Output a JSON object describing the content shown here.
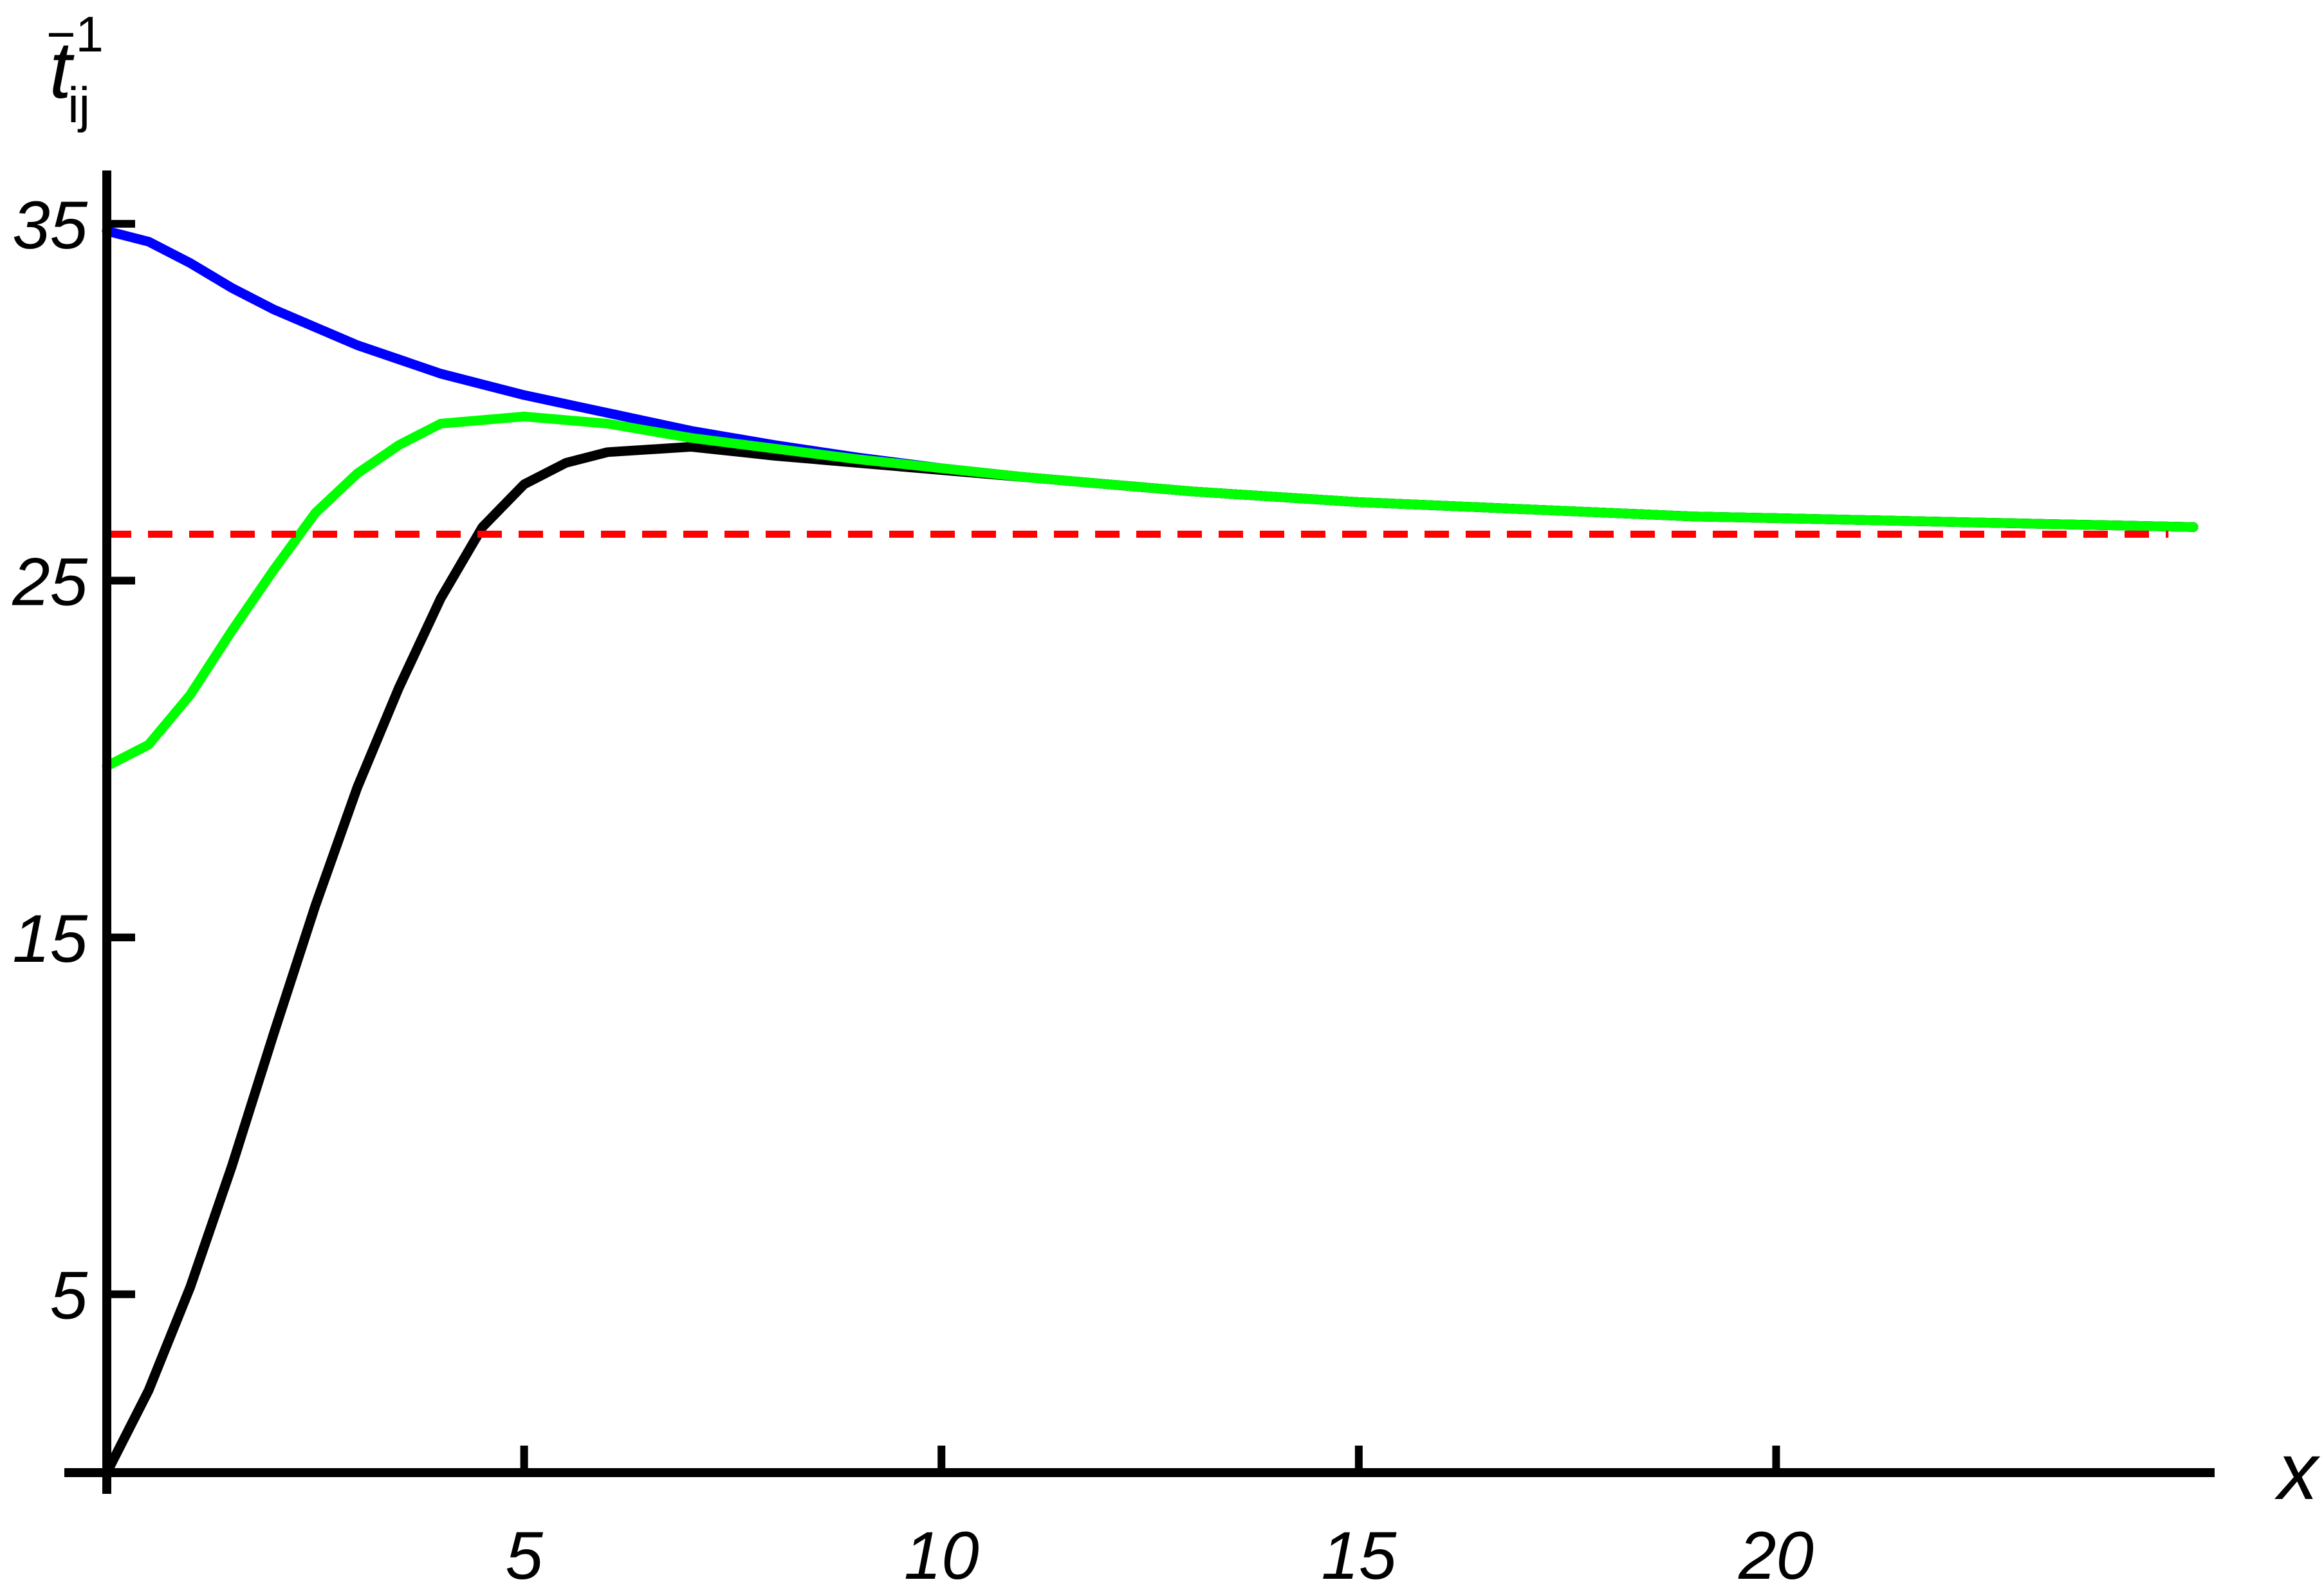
{
  "chart_data": {
    "type": "line",
    "title": "",
    "xlabel": "x",
    "ylabel": {
      "base": "t",
      "sub": "ij",
      "sup": "−1"
    },
    "xlim": [
      0,
      25.3
    ],
    "ylim": [
      0,
      36.5
    ],
    "x_ticks": [
      5,
      10,
      15,
      20
    ],
    "y_ticks": [
      5,
      15,
      25,
      35
    ],
    "grid": false,
    "legend": "none",
    "series": [
      {
        "color": "#0000ff",
        "style": "solid",
        "points": [
          [
            0,
            34.8
          ],
          [
            0.5,
            34.5
          ],
          [
            1,
            33.9
          ],
          [
            1.5,
            33.2
          ],
          [
            2,
            32.6
          ],
          [
            3,
            31.6
          ],
          [
            4,
            30.8
          ],
          [
            5,
            30.2
          ],
          [
            6,
            29.7
          ],
          [
            7,
            29.2
          ],
          [
            8,
            28.8
          ],
          [
            9,
            28.45
          ],
          [
            10,
            28.15
          ],
          [
            11,
            27.9
          ],
          [
            12,
            27.7
          ],
          [
            13,
            27.5
          ],
          [
            14,
            27.35
          ],
          [
            15,
            27.2
          ],
          [
            16,
            27.1
          ],
          [
            17,
            27.0
          ],
          [
            18,
            26.9
          ],
          [
            19,
            26.8
          ],
          [
            20,
            26.75
          ],
          [
            21,
            26.7
          ],
          [
            22,
            26.65
          ],
          [
            23,
            26.6
          ],
          [
            24,
            26.55
          ],
          [
            25,
            26.5
          ]
        ]
      },
      {
        "color": "#000000",
        "style": "solid",
        "points": [
          [
            0,
            0
          ],
          [
            0.5,
            2.3
          ],
          [
            1,
            5.2
          ],
          [
            1.5,
            8.6
          ],
          [
            2,
            12.3
          ],
          [
            2.5,
            15.9
          ],
          [
            3,
            19.2
          ],
          [
            3.5,
            22.0
          ],
          [
            4,
            24.5
          ],
          [
            4.5,
            26.5
          ],
          [
            5,
            27.7
          ],
          [
            5.5,
            28.3
          ],
          [
            6,
            28.6
          ],
          [
            7,
            28.75
          ],
          [
            8,
            28.5
          ],
          [
            9,
            28.3
          ],
          [
            10,
            28.1
          ],
          [
            11,
            27.9
          ],
          [
            12,
            27.7
          ],
          [
            13,
            27.5
          ],
          [
            14,
            27.35
          ],
          [
            15,
            27.2
          ],
          [
            16,
            27.1
          ],
          [
            17,
            27.0
          ],
          [
            18,
            26.9
          ],
          [
            19,
            26.8
          ],
          [
            20,
            26.75
          ],
          [
            21,
            26.7
          ],
          [
            22,
            26.65
          ],
          [
            23,
            26.6
          ],
          [
            24,
            26.55
          ],
          [
            25,
            26.5
          ]
        ]
      },
      {
        "color": "#00ff00",
        "style": "solid",
        "points": [
          [
            0,
            19.8
          ],
          [
            0.5,
            20.4
          ],
          [
            1,
            21.8
          ],
          [
            1.5,
            23.6
          ],
          [
            2,
            25.3
          ],
          [
            2.5,
            26.9
          ],
          [
            3,
            28.0
          ],
          [
            3.5,
            28.8
          ],
          [
            4,
            29.4
          ],
          [
            5,
            29.6
          ],
          [
            6,
            29.4
          ],
          [
            7,
            29.0
          ],
          [
            8,
            28.7
          ],
          [
            9,
            28.4
          ],
          [
            10,
            28.15
          ],
          [
            11,
            27.9
          ],
          [
            12,
            27.7
          ],
          [
            13,
            27.5
          ],
          [
            14,
            27.35
          ],
          [
            15,
            27.2
          ],
          [
            16,
            27.1
          ],
          [
            17,
            27.0
          ],
          [
            18,
            26.9
          ],
          [
            19,
            26.8
          ],
          [
            20,
            26.75
          ],
          [
            21,
            26.7
          ],
          [
            22,
            26.65
          ],
          [
            23,
            26.6
          ],
          [
            24,
            26.55
          ],
          [
            25,
            26.5
          ]
        ]
      },
      {
        "color": "#ff0000",
        "style": "dashed",
        "points": [
          [
            0,
            26.3
          ],
          [
            24.7,
            26.3
          ]
        ]
      }
    ]
  }
}
